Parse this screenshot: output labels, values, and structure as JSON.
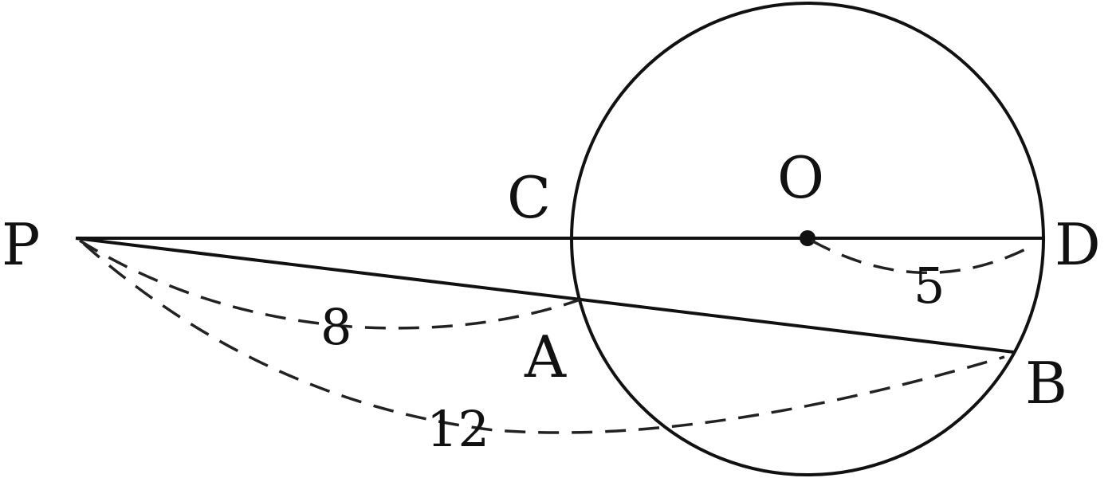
{
  "diagram": {
    "points": {
      "P": "P",
      "C": "C",
      "O": "O",
      "D": "D",
      "A": "A",
      "B": "B"
    },
    "lengths": {
      "PA": "8",
      "PB": "12",
      "OD": "5"
    }
  },
  "colors": {
    "stroke": "#111111",
    "background": "#ffffff"
  }
}
